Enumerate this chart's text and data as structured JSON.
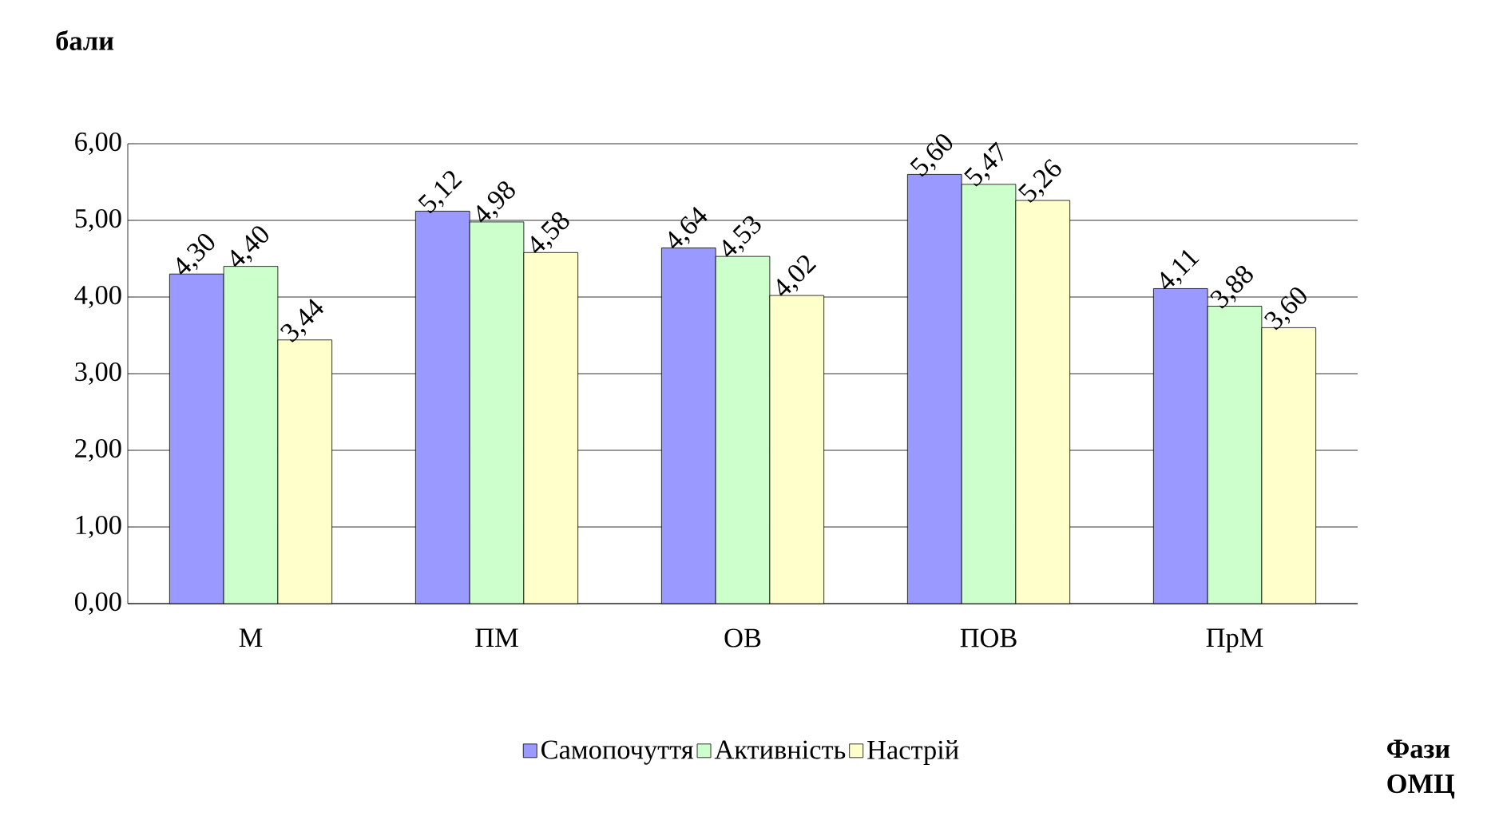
{
  "chart_data": {
    "type": "bar",
    "annotations": [
      "Фази ОМЦ"
    ],
    "ylabel": "бали",
    "categories": [
      "М",
      "ПМ",
      "ОВ",
      "ПОВ",
      "ПрМ"
    ],
    "series": [
      {
        "name": "Самопочуття",
        "color": "#9999ff",
        "values": [
          4.3,
          5.12,
          4.64,
          5.6,
          4.11
        ],
        "value_labels": [
          "4,30",
          "5,12",
          "4,64",
          "5,60",
          "4,11"
        ]
      },
      {
        "name": "Активність",
        "color": "#ccffcc",
        "values": [
          4.4,
          4.98,
          4.53,
          5.47,
          3.88
        ],
        "value_labels": [
          "4,40",
          "4,98",
          "4,53",
          "5,47",
          "3,88"
        ]
      },
      {
        "name": "Настрій",
        "color": "#ffffcc",
        "values": [
          3.44,
          4.58,
          4.02,
          5.26,
          3.6
        ],
        "value_labels": [
          "3,44",
          "4,58",
          "4,02",
          "5,26",
          "3,60"
        ]
      }
    ],
    "ylim": [
      0,
      6
    ],
    "yticks": [
      {
        "value": 0,
        "label": "0,00"
      },
      {
        "value": 1,
        "label": "1,00"
      },
      {
        "value": 2,
        "label": "2,00"
      },
      {
        "value": 3,
        "label": "3,00"
      },
      {
        "value": 4,
        "label": "4,00"
      },
      {
        "value": 5,
        "label": "5,00"
      },
      {
        "value": 6,
        "label": "6,00"
      }
    ],
    "grid": "y",
    "legend": "bottom"
  }
}
